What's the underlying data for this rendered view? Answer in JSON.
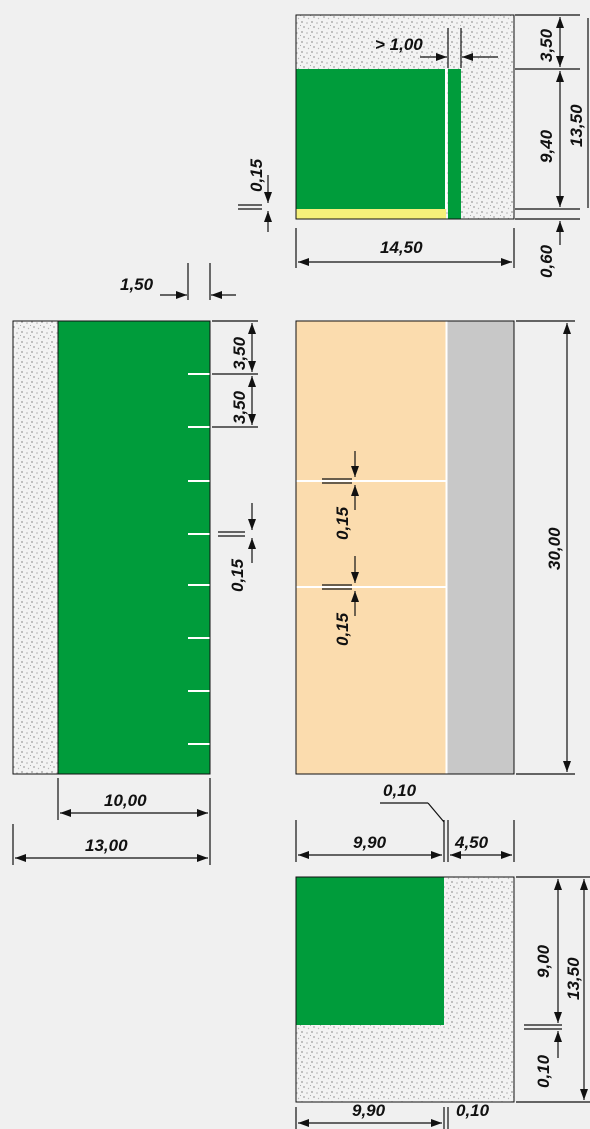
{
  "colors": {
    "background": "#f0f0f0",
    "turf_green": "#009c3b",
    "sand_peach": "#fbdcae",
    "concrete_gray": "#c8c8c8",
    "yellow_strip": "#f5f07a",
    "line": "#111111"
  },
  "patterns": {
    "gravel": "gravel-fill"
  },
  "labels": {
    "top_gap": "> 1,00",
    "top_height_a": "3,50",
    "top_height_b": "9,40",
    "top_height_total": "13,50",
    "top_line": "0,15",
    "top_edge": "0,60",
    "top_width": "14,50",
    "left_margin": "1,50",
    "left_step_a": "3,50",
    "left_step_b": "3,50",
    "left_line": "0,15",
    "left_inner_width": "10,00",
    "left_total_width": "13,00",
    "mid_line_a": "0,15",
    "mid_line_b": "0,15",
    "mid_height": "30,00",
    "mid_gap": "0,10",
    "mid_width_a": "9,90",
    "mid_width_b": "4,50",
    "bottom_height_a": "9,00",
    "bottom_height_total": "13,50",
    "bottom_edge": "0,10",
    "bottom_width_a": "9,90",
    "bottom_width_b": "0,10"
  }
}
